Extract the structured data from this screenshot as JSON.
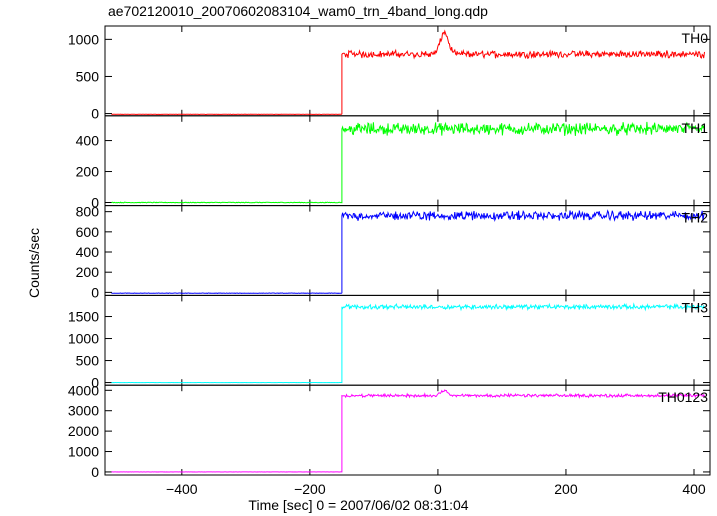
{
  "chart_data": {
    "type": "line",
    "title": "ae702120010_20070602083104_wam0_trn_4band_long.qdp",
    "xlabel": "Time [sec] 0 = 2007/06/02 08:31:04",
    "ylabel": "Counts/sec",
    "xlim": [
      -520,
      425
    ],
    "xticks": [
      -400,
      -200,
      0,
      200,
      400
    ],
    "grid": false,
    "step_time": -150,
    "panels": [
      {
        "name": "TH0",
        "color": "#ff0000",
        "ylim": [
          -30,
          1180
        ],
        "yticks": [
          0,
          500,
          1000
        ],
        "baseline": -10,
        "level": 800,
        "noise": 35,
        "peak": {
          "x": 10,
          "height": 300,
          "width": 6
        }
      },
      {
        "name": "TH1",
        "color": "#00ff00",
        "ylim": [
          -20,
          560
        ],
        "yticks": [
          0,
          200,
          400
        ],
        "baseline": 0,
        "level": 475,
        "noise": 30,
        "peak": null
      },
      {
        "name": "TH2",
        "color": "#0000ff",
        "ylim": [
          -30,
          860
        ],
        "yticks": [
          0,
          200,
          400,
          600,
          800
        ],
        "baseline": -8,
        "level": 760,
        "noise": 35,
        "peak": null
      },
      {
        "name": "TH3",
        "color": "#00ffff",
        "ylim": [
          -60,
          1980
        ],
        "yticks": [
          0,
          500,
          1000,
          1500
        ],
        "baseline": 0,
        "level": 1720,
        "noise": 40,
        "peak": null
      },
      {
        "name": "TH0123",
        "color": "#ff00ff",
        "ylim": [
          -150,
          4250
        ],
        "yticks": [
          0,
          1000,
          2000,
          3000,
          4000
        ],
        "baseline": 0,
        "level": 3740,
        "noise": 55,
        "peak": {
          "x": 10,
          "height": 250,
          "width": 6
        }
      }
    ]
  }
}
